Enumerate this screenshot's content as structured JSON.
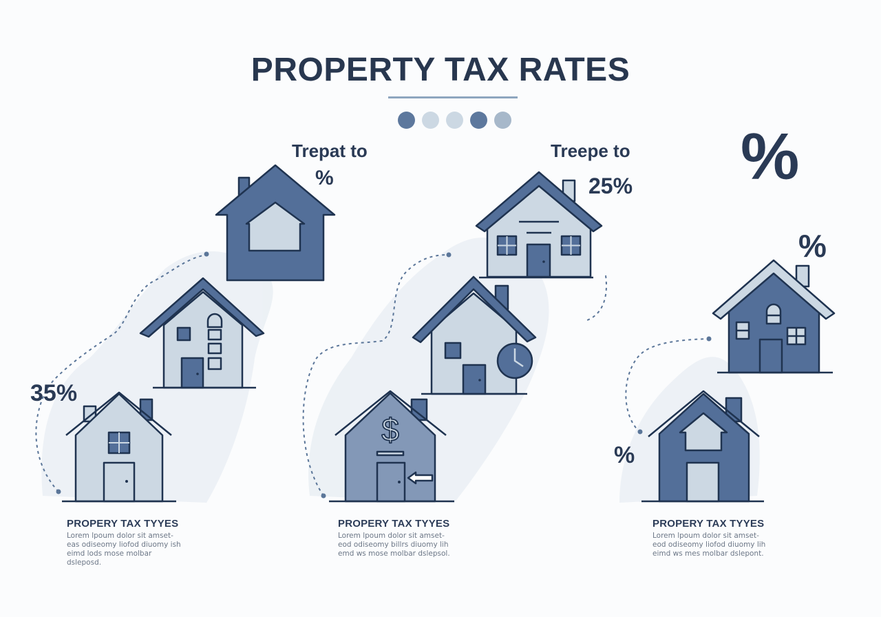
{
  "title": "PROPERTY TAX RATES",
  "colors": {
    "dark": "#536f99",
    "light": "#ccd8e3",
    "mid": "#8398b7",
    "outline": "#1f3350",
    "wash": "#e8eef3"
  },
  "dots": [
    "#5d789d",
    "#ccd8e3",
    "#ccd8e3",
    "#5d789d",
    "#a7b8ca"
  ],
  "labels": {
    "left_top_title": "Trepat to",
    "left_top_value": "%",
    "left_rate": "35%",
    "mid_top_title": "Treepe to",
    "mid_top_value": "25%",
    "right_big_percent": "%",
    "right_top_percent": "%",
    "right_side_percent": "%"
  },
  "captions": [
    {
      "heading": "PROPERY TAX TYYES",
      "body": "Lorem lpoum dolor sit amset- eas odiseomy liofod diuomy ish eimd lods mose molbar dsleposd."
    },
    {
      "heading": "PROPERY TAX TYYES",
      "body": "Lorem lpoum dolor sit amset- eod odiseomy billrs diuomy lih emd ws mose molbar dslepsol."
    },
    {
      "heading": "PROPERY TAX TYYES",
      "body": "Lorem lpoum dolor sit amset- eod odiseomy liofod diuomy lih eimd ws mes molbar dslepont."
    }
  ],
  "icons": [
    "house-icon-arrow-frame",
    "house-icon-tall",
    "house-icon-small-left",
    "house-icon-top-middle",
    "house-icon-clock",
    "house-icon-dollar",
    "house-icon-right-upper",
    "house-icon-right-lower",
    "clock-icon",
    "dollar-icon"
  ]
}
